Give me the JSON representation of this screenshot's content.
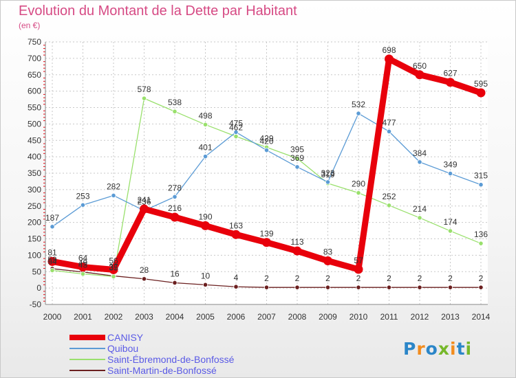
{
  "title": "Evolution du Montant de la Dette par Habitant",
  "subtitle": "(en €)",
  "logo": "Proxiti",
  "chart_data": {
    "type": "line",
    "title": "Evolution du Montant de la Dette par Habitant",
    "subtitle": "(en €)",
    "x": [
      "2000",
      "2001",
      "2002",
      "2003",
      "2004",
      "2005",
      "2006",
      "2007",
      "2008",
      "2009",
      "2010",
      "2011",
      "2012",
      "2013",
      "2014"
    ],
    "ylim": [
      -50,
      750
    ],
    "yticks": [
      -50,
      0,
      50,
      100,
      150,
      200,
      250,
      300,
      350,
      400,
      450,
      500,
      550,
      600,
      650,
      700,
      750
    ],
    "grid": true,
    "legend_position": "bottom-left",
    "series": [
      {
        "name": "CANISY",
        "color": "#e8000b",
        "values": [
          81,
          64,
          56,
          241,
          216,
          190,
          163,
          139,
          113,
          83,
          57,
          698,
          650,
          627,
          595
        ]
      },
      {
        "name": "Quibou",
        "color": "#5b9bd5",
        "values": [
          187,
          253,
          282,
          236,
          278,
          401,
          475,
          420,
          369,
          323,
          532,
          477,
          384,
          349,
          315
        ]
      },
      {
        "name": "Saint-Ébremond-de-Bonfossé",
        "color": "#99e06c",
        "values": [
          54,
          43,
          35,
          578,
          538,
          498,
          462,
          429,
          395,
          319,
          290,
          252,
          214,
          174,
          136
        ]
      },
      {
        "name": "Saint-Martin-de-Bonfossé",
        "color": "#6b1f1f",
        "values": [
          59,
          49,
          37,
          28,
          16,
          10,
          4,
          2,
          2,
          2,
          2,
          2,
          2,
          2,
          2
        ]
      }
    ]
  }
}
